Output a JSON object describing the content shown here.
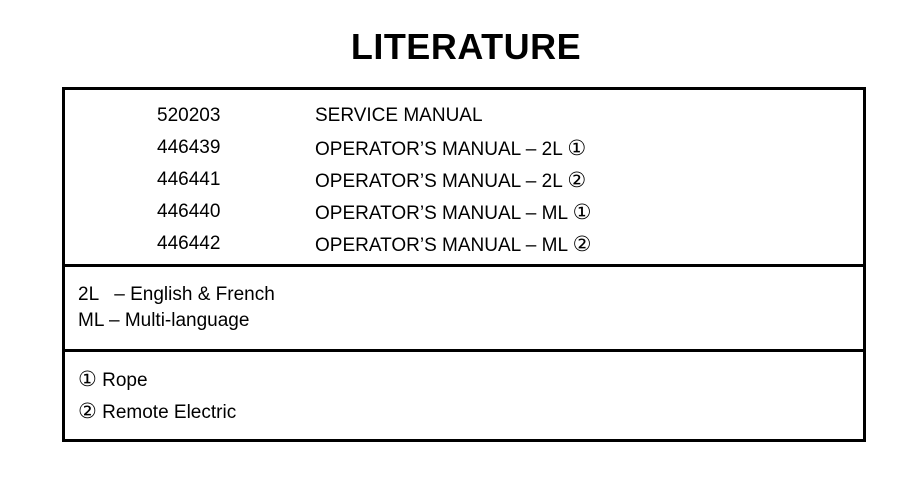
{
  "title": "LITERATURE",
  "items": [
    {
      "part": "520203",
      "desc": "SERVICE MANUAL",
      "mark": ""
    },
    {
      "part": "446439",
      "desc": "OPERATOR’S MANUAL – 2L",
      "mark": "①"
    },
    {
      "part": "446441",
      "desc": "OPERATOR’S MANUAL – 2L",
      "mark": "②"
    },
    {
      "part": "446440",
      "desc": "OPERATOR’S MANUAL – ML",
      "mark": "①"
    },
    {
      "part": "446442",
      "desc": "OPERATOR’S MANUAL – ML",
      "mark": "②"
    }
  ],
  "languages": [
    "2L   – English & French",
    "ML – Multi-language"
  ],
  "notes": [
    {
      "mark": "①",
      "text": "Rope"
    },
    {
      "mark": "②",
      "text": "Remote Electric"
    }
  ]
}
